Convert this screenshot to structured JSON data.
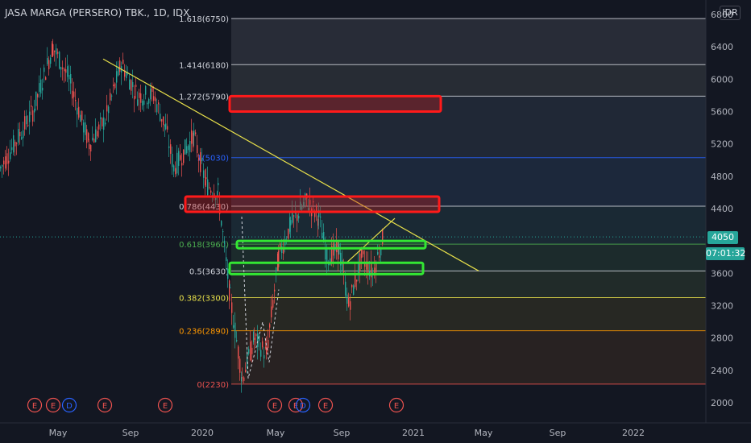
{
  "header": {
    "title": "JASA MARGA (PERSERO) TBK., 1D, IDX",
    "currency": "IDR"
  },
  "price_badges": {
    "current_price": "4050",
    "countdown": "07:01:32"
  },
  "colors": {
    "background": "#131722",
    "up": "#26a69a",
    "down": "#ef5350",
    "trendline": "#e8e04a",
    "zone_resistance": "#ff1a1a",
    "zone_support": "#33e633"
  },
  "chart_data": {
    "type": "candlestick",
    "x_axis_labels": [
      "May",
      "Sep",
      "2020",
      "May",
      "Sep",
      "2021",
      "May",
      "Sep",
      "2022"
    ],
    "y_axis_labels": [
      2000,
      2400,
      2800,
      3200,
      3600,
      4000,
      4400,
      4800,
      5200,
      5600,
      6000,
      6400,
      6800
    ],
    "ylim": [
      1900,
      6900
    ],
    "fib_levels": [
      {
        "label": "1.618(6750)",
        "ratio": 1.618,
        "price": 6750,
        "color": "#d1d4dc"
      },
      {
        "label": "1.414(6180)",
        "ratio": 1.414,
        "price": 6180,
        "color": "#d1d4dc"
      },
      {
        "label": "1.272(5790)",
        "ratio": 1.272,
        "price": 5790,
        "color": "#d1d4dc"
      },
      {
        "label": "1(5030)",
        "ratio": 1,
        "price": 5030,
        "color": "#2962ff"
      },
      {
        "label": "0.786(4430)",
        "ratio": 0.786,
        "price": 4430,
        "color": "#d1d4dc"
      },
      {
        "label": "0.618(3960)",
        "ratio": 0.618,
        "price": 3960,
        "color": "#4caf50"
      },
      {
        "label": "0.5(3630)",
        "ratio": 0.5,
        "price": 3630,
        "color": "#d1d4dc"
      },
      {
        "label": "0.382(3300)",
        "ratio": 0.382,
        "price": 3300,
        "color": "#e8e04a"
      },
      {
        "label": "0.236(2890)",
        "ratio": 0.236,
        "price": 2890,
        "color": "#ff9800"
      },
      {
        "label": "0(2230)",
        "ratio": 0,
        "price": 2230,
        "color": "#ef5350"
      }
    ],
    "current_price": 4050,
    "zones": [
      {
        "type": "resistance",
        "price_low": 5600,
        "price_high": 5790
      },
      {
        "type": "resistance",
        "price_low": 4360,
        "price_high": 4550
      },
      {
        "type": "support",
        "price_low": 3910,
        "price_high": 4000
      },
      {
        "type": "support",
        "price_low": 3590,
        "price_high": 3730
      }
    ],
    "price_path": [
      [
        "2019-03",
        4900
      ],
      [
        "2019-04",
        5600
      ],
      [
        "2019-04b",
        6400
      ],
      [
        "2019-05",
        6000
      ],
      [
        "2019-06",
        5200
      ],
      [
        "2019-07",
        5500
      ],
      [
        "2019-08",
        6200
      ],
      [
        "2019-09",
        5800
      ],
      [
        "2019-10",
        5800
      ],
      [
        "2019-11",
        5400
      ],
      [
        "2019-12",
        4900
      ],
      [
        "2020-01",
        5300
      ],
      [
        "2020-02",
        4700
      ],
      [
        "2020-02b",
        4600
      ],
      [
        "2020-03",
        3300
      ],
      [
        "2020-03b",
        2300
      ],
      [
        "2020-04",
        2800
      ],
      [
        "2020-04b",
        2600
      ],
      [
        "2020-05",
        3800
      ],
      [
        "2020-06",
        4200
      ],
      [
        "2020-06b",
        4500
      ],
      [
        "2020-07",
        4300
      ],
      [
        "2020-08",
        3800
      ],
      [
        "2020-08b",
        3900
      ],
      [
        "2020-09",
        3200
      ],
      [
        "2020-10",
        3800
      ],
      [
        "2020-11",
        3600
      ],
      [
        "2020-11b",
        4050
      ]
    ],
    "event_markers": [
      "E",
      "E",
      "D",
      "E",
      "E",
      "E",
      "E",
      "D",
      "E",
      "E"
    ]
  }
}
